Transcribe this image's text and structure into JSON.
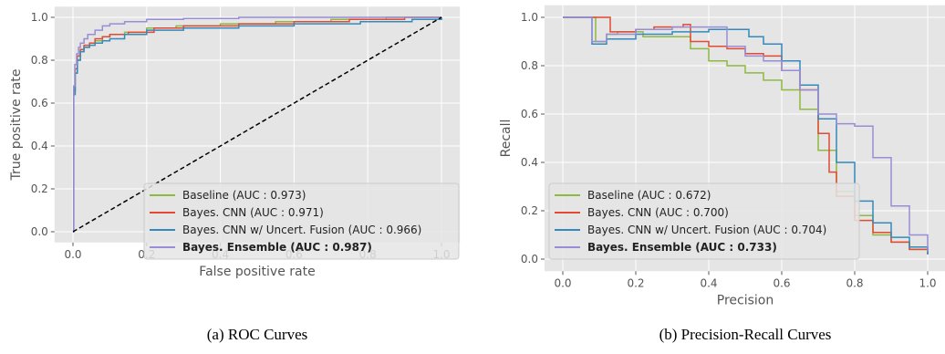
{
  "captions": [
    "(a) ROC Curves",
    "(b) Precision-Recall Curves"
  ],
  "colors": {
    "baseline": "#8EBA42",
    "cnn": "#E24A33",
    "fusion": "#348ABD",
    "ensemble": "#988ED5",
    "background": "#E5E5E5",
    "grid": "#FFFFFF"
  },
  "chart_data": [
    {
      "type": "line",
      "title": "",
      "xlabel": "False positive rate",
      "ylabel": "True positive rate",
      "xlim": [
        -0.05,
        1.05
      ],
      "ylim": [
        -0.05,
        1.05
      ],
      "xticks": [
        "0.0",
        "0.2",
        "0.4",
        "0.6",
        "0.8",
        "1.0"
      ],
      "yticks": [
        "0.0",
        "0.2",
        "0.4",
        "0.6",
        "0.8",
        "1.0"
      ],
      "grid": true,
      "legend_position": "lower-right",
      "reference_line": {
        "style": "dashed",
        "color": "#000000",
        "x": [
          0,
          1
        ],
        "y": [
          0,
          1
        ]
      },
      "series": [
        {
          "name": "Baseline (AUC : 0.973)",
          "color_key": "baseline",
          "bold": false,
          "x": [
            0,
            0.002,
            0.006,
            0.012,
            0.02,
            0.03,
            0.045,
            0.06,
            0.08,
            0.1,
            0.14,
            0.2,
            0.28,
            0.4,
            0.55,
            0.7,
            0.85,
            1.0
          ],
          "y": [
            0,
            0.65,
            0.74,
            0.8,
            0.84,
            0.86,
            0.88,
            0.89,
            0.91,
            0.92,
            0.93,
            0.95,
            0.96,
            0.97,
            0.98,
            0.99,
            1.0,
            1.0
          ]
        },
        {
          "name": "Bayes. CNN (AUC : 0.971)",
          "color_key": "cnn",
          "bold": false,
          "x": [
            0,
            0.002,
            0.006,
            0.012,
            0.02,
            0.03,
            0.045,
            0.06,
            0.08,
            0.1,
            0.15,
            0.22,
            0.3,
            0.45,
            0.6,
            0.75,
            0.9,
            1.0
          ],
          "y": [
            0,
            0.66,
            0.76,
            0.82,
            0.85,
            0.87,
            0.88,
            0.9,
            0.91,
            0.92,
            0.93,
            0.95,
            0.96,
            0.97,
            0.98,
            0.99,
            1.0,
            1.0
          ]
        },
        {
          "name": "Bayes. CNN w/ Uncert. Fusion (AUC : 0.966)",
          "color_key": "fusion",
          "bold": false,
          "x": [
            0,
            0.002,
            0.006,
            0.012,
            0.02,
            0.03,
            0.045,
            0.06,
            0.08,
            0.1,
            0.14,
            0.2,
            0.3,
            0.45,
            0.6,
            0.78,
            0.92,
            1.0
          ],
          "y": [
            0,
            0.64,
            0.74,
            0.8,
            0.84,
            0.86,
            0.87,
            0.88,
            0.89,
            0.9,
            0.92,
            0.94,
            0.95,
            0.96,
            0.97,
            0.98,
            0.99,
            1.0
          ]
        },
        {
          "name": "Bayes. Ensemble (AUC : 0.987)",
          "color_key": "ensemble",
          "bold": true,
          "x": [
            0,
            0.002,
            0.005,
            0.01,
            0.015,
            0.02,
            0.03,
            0.04,
            0.06,
            0.08,
            0.1,
            0.14,
            0.2,
            0.3,
            0.45,
            0.7,
            1.0
          ],
          "y": [
            0,
            0.68,
            0.78,
            0.83,
            0.86,
            0.88,
            0.9,
            0.92,
            0.94,
            0.96,
            0.97,
            0.98,
            0.99,
            0.995,
            1.0,
            1.0,
            1.0
          ]
        }
      ]
    },
    {
      "type": "line",
      "title": "",
      "xlabel": "Precision",
      "ylabel": "Recall",
      "xlim": [
        -0.05,
        1.05
      ],
      "ylim": [
        -0.05,
        1.05
      ],
      "xticks": [
        "0.0",
        "0.2",
        "0.4",
        "0.6",
        "0.8",
        "1.0"
      ],
      "yticks": [
        "0.0",
        "0.2",
        "0.4",
        "0.6",
        "0.8",
        "1.0"
      ],
      "grid": true,
      "legend_position": "lower-left",
      "series": [
        {
          "name": "Baseline (AUC : 0.672)",
          "color_key": "baseline",
          "bold": false,
          "x": [
            0,
            0.07,
            0.09,
            0.12,
            0.15,
            0.2,
            0.22,
            0.25,
            0.3,
            0.35,
            0.4,
            0.45,
            0.5,
            0.55,
            0.6,
            0.65,
            0.7,
            0.75,
            0.8,
            0.85,
            0.9,
            0.95,
            1.0
          ],
          "y": [
            1.0,
            1.0,
            0.9,
            0.93,
            0.94,
            0.94,
            0.92,
            0.92,
            0.92,
            0.87,
            0.82,
            0.8,
            0.77,
            0.74,
            0.7,
            0.62,
            0.45,
            0.28,
            0.18,
            0.1,
            0.07,
            0.04,
            0.02
          ]
        },
        {
          "name": "Bayes. CNN (AUC : 0.700)",
          "color_key": "cnn",
          "bold": false,
          "x": [
            0,
            0.12,
            0.13,
            0.2,
            0.25,
            0.3,
            0.33,
            0.35,
            0.4,
            0.45,
            0.5,
            0.55,
            0.6,
            0.65,
            0.7,
            0.73,
            0.75,
            0.8,
            0.85,
            0.9,
            0.95,
            1.0
          ],
          "y": [
            1.0,
            1.0,
            0.94,
            0.95,
            0.96,
            0.96,
            0.97,
            0.9,
            0.88,
            0.87,
            0.85,
            0.84,
            0.78,
            0.7,
            0.52,
            0.36,
            0.26,
            0.16,
            0.11,
            0.07,
            0.04,
            0.02
          ]
        },
        {
          "name": "Bayes. CNN w/ Uncert. Fusion (AUC : 0.704)",
          "color_key": "fusion",
          "bold": false,
          "x": [
            0,
            0.08,
            0.12,
            0.2,
            0.3,
            0.4,
            0.5,
            0.51,
            0.55,
            0.6,
            0.65,
            0.7,
            0.75,
            0.8,
            0.85,
            0.9,
            0.95,
            1.0
          ],
          "y": [
            1.0,
            0.89,
            0.91,
            0.93,
            0.94,
            0.95,
            0.95,
            0.92,
            0.89,
            0.82,
            0.72,
            0.58,
            0.4,
            0.24,
            0.15,
            0.09,
            0.05,
            0.02
          ]
        },
        {
          "name": "Bayes. Ensemble (AUC : 0.733)",
          "color_key": "ensemble",
          "bold": true,
          "x": [
            0,
            0.07,
            0.08,
            0.12,
            0.2,
            0.3,
            0.4,
            0.45,
            0.5,
            0.55,
            0.6,
            0.65,
            0.7,
            0.75,
            0.8,
            0.85,
            0.9,
            0.95,
            1.0
          ],
          "y": [
            1.0,
            1.0,
            0.9,
            0.93,
            0.95,
            0.96,
            0.96,
            0.88,
            0.84,
            0.82,
            0.78,
            0.7,
            0.6,
            0.56,
            0.55,
            0.42,
            0.22,
            0.1,
            0.03
          ]
        }
      ]
    }
  ]
}
